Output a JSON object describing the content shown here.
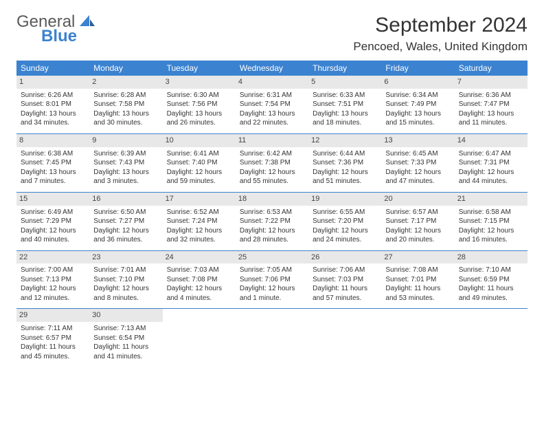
{
  "logo": {
    "main": "General",
    "accent": "Blue"
  },
  "title": "September 2024",
  "location": "Pencoed, Wales, United Kingdom",
  "colors": {
    "header_bg": "#3b82d0",
    "header_text": "#ffffff",
    "daynum_bg": "#e8e8e8",
    "border": "#3b82d0",
    "text": "#333333",
    "logo_gray": "#5a5a5a",
    "logo_blue": "#3b82d0"
  },
  "fonts": {
    "title_size": 30,
    "location_size": 17,
    "header_size": 12,
    "cell_size": 10,
    "daynum_size": 11
  },
  "weekdays": [
    "Sunday",
    "Monday",
    "Tuesday",
    "Wednesday",
    "Thursday",
    "Friday",
    "Saturday"
  ],
  "days": [
    {
      "n": "1",
      "sr": "Sunrise: 6:26 AM",
      "ss": "Sunset: 8:01 PM",
      "dl": "Daylight: 13 hours and 34 minutes."
    },
    {
      "n": "2",
      "sr": "Sunrise: 6:28 AM",
      "ss": "Sunset: 7:58 PM",
      "dl": "Daylight: 13 hours and 30 minutes."
    },
    {
      "n": "3",
      "sr": "Sunrise: 6:30 AM",
      "ss": "Sunset: 7:56 PM",
      "dl": "Daylight: 13 hours and 26 minutes."
    },
    {
      "n": "4",
      "sr": "Sunrise: 6:31 AM",
      "ss": "Sunset: 7:54 PM",
      "dl": "Daylight: 13 hours and 22 minutes."
    },
    {
      "n": "5",
      "sr": "Sunrise: 6:33 AM",
      "ss": "Sunset: 7:51 PM",
      "dl": "Daylight: 13 hours and 18 minutes."
    },
    {
      "n": "6",
      "sr": "Sunrise: 6:34 AM",
      "ss": "Sunset: 7:49 PM",
      "dl": "Daylight: 13 hours and 15 minutes."
    },
    {
      "n": "7",
      "sr": "Sunrise: 6:36 AM",
      "ss": "Sunset: 7:47 PM",
      "dl": "Daylight: 13 hours and 11 minutes."
    },
    {
      "n": "8",
      "sr": "Sunrise: 6:38 AM",
      "ss": "Sunset: 7:45 PM",
      "dl": "Daylight: 13 hours and 7 minutes."
    },
    {
      "n": "9",
      "sr": "Sunrise: 6:39 AM",
      "ss": "Sunset: 7:43 PM",
      "dl": "Daylight: 13 hours and 3 minutes."
    },
    {
      "n": "10",
      "sr": "Sunrise: 6:41 AM",
      "ss": "Sunset: 7:40 PM",
      "dl": "Daylight: 12 hours and 59 minutes."
    },
    {
      "n": "11",
      "sr": "Sunrise: 6:42 AM",
      "ss": "Sunset: 7:38 PM",
      "dl": "Daylight: 12 hours and 55 minutes."
    },
    {
      "n": "12",
      "sr": "Sunrise: 6:44 AM",
      "ss": "Sunset: 7:36 PM",
      "dl": "Daylight: 12 hours and 51 minutes."
    },
    {
      "n": "13",
      "sr": "Sunrise: 6:45 AM",
      "ss": "Sunset: 7:33 PM",
      "dl": "Daylight: 12 hours and 47 minutes."
    },
    {
      "n": "14",
      "sr": "Sunrise: 6:47 AM",
      "ss": "Sunset: 7:31 PM",
      "dl": "Daylight: 12 hours and 44 minutes."
    },
    {
      "n": "15",
      "sr": "Sunrise: 6:49 AM",
      "ss": "Sunset: 7:29 PM",
      "dl": "Daylight: 12 hours and 40 minutes."
    },
    {
      "n": "16",
      "sr": "Sunrise: 6:50 AM",
      "ss": "Sunset: 7:27 PM",
      "dl": "Daylight: 12 hours and 36 minutes."
    },
    {
      "n": "17",
      "sr": "Sunrise: 6:52 AM",
      "ss": "Sunset: 7:24 PM",
      "dl": "Daylight: 12 hours and 32 minutes."
    },
    {
      "n": "18",
      "sr": "Sunrise: 6:53 AM",
      "ss": "Sunset: 7:22 PM",
      "dl": "Daylight: 12 hours and 28 minutes."
    },
    {
      "n": "19",
      "sr": "Sunrise: 6:55 AM",
      "ss": "Sunset: 7:20 PM",
      "dl": "Daylight: 12 hours and 24 minutes."
    },
    {
      "n": "20",
      "sr": "Sunrise: 6:57 AM",
      "ss": "Sunset: 7:17 PM",
      "dl": "Daylight: 12 hours and 20 minutes."
    },
    {
      "n": "21",
      "sr": "Sunrise: 6:58 AM",
      "ss": "Sunset: 7:15 PM",
      "dl": "Daylight: 12 hours and 16 minutes."
    },
    {
      "n": "22",
      "sr": "Sunrise: 7:00 AM",
      "ss": "Sunset: 7:13 PM",
      "dl": "Daylight: 12 hours and 12 minutes."
    },
    {
      "n": "23",
      "sr": "Sunrise: 7:01 AM",
      "ss": "Sunset: 7:10 PM",
      "dl": "Daylight: 12 hours and 8 minutes."
    },
    {
      "n": "24",
      "sr": "Sunrise: 7:03 AM",
      "ss": "Sunset: 7:08 PM",
      "dl": "Daylight: 12 hours and 4 minutes."
    },
    {
      "n": "25",
      "sr": "Sunrise: 7:05 AM",
      "ss": "Sunset: 7:06 PM",
      "dl": "Daylight: 12 hours and 1 minute."
    },
    {
      "n": "26",
      "sr": "Sunrise: 7:06 AM",
      "ss": "Sunset: 7:03 PM",
      "dl": "Daylight: 11 hours and 57 minutes."
    },
    {
      "n": "27",
      "sr": "Sunrise: 7:08 AM",
      "ss": "Sunset: 7:01 PM",
      "dl": "Daylight: 11 hours and 53 minutes."
    },
    {
      "n": "28",
      "sr": "Sunrise: 7:10 AM",
      "ss": "Sunset: 6:59 PM",
      "dl": "Daylight: 11 hours and 49 minutes."
    },
    {
      "n": "29",
      "sr": "Sunrise: 7:11 AM",
      "ss": "Sunset: 6:57 PM",
      "dl": "Daylight: 11 hours and 45 minutes."
    },
    {
      "n": "30",
      "sr": "Sunrise: 7:13 AM",
      "ss": "Sunset: 6:54 PM",
      "dl": "Daylight: 11 hours and 41 minutes."
    }
  ]
}
